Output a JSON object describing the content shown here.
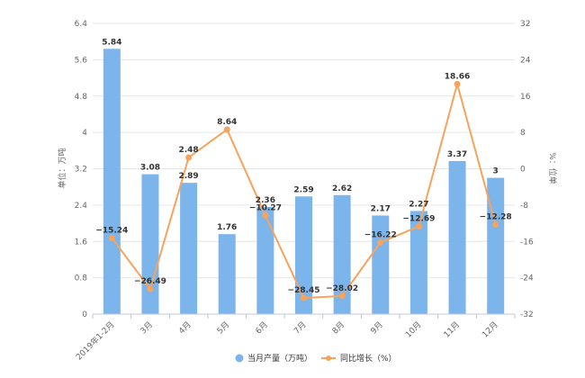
{
  "chart_data": {
    "type": "bar+line",
    "categories": [
      "2019年1-2月",
      "3月",
      "4月",
      "5月",
      "6月",
      "7月",
      "8月",
      "9月",
      "10月",
      "11月",
      "12月"
    ],
    "series": [
      {
        "name": "当月产量（万吨）",
        "type": "bar",
        "axis": "left",
        "color": "#7cb5ec",
        "values": [
          5.84,
          3.08,
          2.89,
          1.76,
          2.36,
          2.59,
          2.62,
          2.17,
          2.27,
          3.37,
          3
        ],
        "labels": [
          "5.84",
          "3.08",
          "2.89",
          "1.76",
          "2.36",
          "2.59",
          "2.62",
          "2.17",
          "2.27",
          "3.37",
          "3"
        ]
      },
      {
        "name": "同比增长（%）",
        "type": "line",
        "axis": "right",
        "color": "#f7a35c",
        "values": [
          -15.24,
          -26.49,
          2.48,
          8.64,
          -10.27,
          -28.45,
          -28.02,
          -16.22,
          -12.69,
          18.66,
          -12.28
        ],
        "labels": [
          "−15.24",
          "−26.49",
          "2.48",
          "8.64",
          "−10.27",
          "−28.45",
          "−28.02",
          "−16.22",
          "−12.69",
          "18.66",
          "−12.28"
        ]
      }
    ],
    "y_left": {
      "label": "单位：万吨",
      "range": [
        0,
        6.4
      ],
      "ticks": [
        "0",
        "0.8",
        "1.6",
        "2.4",
        "3.2",
        "4",
        "4.8",
        "5.6",
        "6.4"
      ]
    },
    "y_right": {
      "label": "%：位单",
      "range": [
        -32,
        32
      ],
      "ticks": [
        "-32",
        "-24",
        "-16",
        "-8",
        "0",
        "8",
        "16",
        "24",
        "32"
      ]
    },
    "grid": true,
    "legend_position": "bottom-center"
  }
}
